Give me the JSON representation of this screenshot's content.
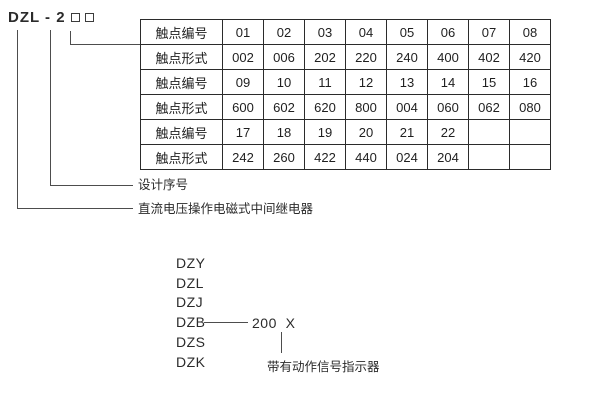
{
  "model": {
    "prefix": "DZL - 2",
    "placeholder_boxes": 2
  },
  "table": {
    "rows": [
      {
        "label": "触点编号",
        "cells": [
          "01",
          "02",
          "03",
          "04",
          "05",
          "06",
          "07",
          "08"
        ]
      },
      {
        "label": "触点形式",
        "cells": [
          "002",
          "006",
          "202",
          "220",
          "240",
          "400",
          "402",
          "420"
        ]
      },
      {
        "label": "触点编号",
        "cells": [
          "09",
          "10",
          "11",
          "12",
          "13",
          "14",
          "15",
          "16"
        ]
      },
      {
        "label": "触点形式",
        "cells": [
          "600",
          "602",
          "620",
          "800",
          "004",
          "060",
          "062",
          "080"
        ]
      },
      {
        "label": "触点编号",
        "cells": [
          "17",
          "18",
          "19",
          "20",
          "21",
          "22",
          "",
          ""
        ]
      },
      {
        "label": "触点形式",
        "cells": [
          "242",
          "260",
          "422",
          "440",
          "024",
          "204",
          "",
          ""
        ]
      }
    ]
  },
  "callouts": {
    "design_serial": "设计序号",
    "relay_description": "直流电压操作电磁式中间继电器"
  },
  "type_list": {
    "items": [
      "DZY",
      "DZL",
      "DZJ",
      "DZB",
      "DZS",
      "DZK"
    ],
    "model_suffix": "200  X",
    "indicator_note": "带有动作信号指示器"
  },
  "colors": {
    "background": "#ffffff",
    "text": "#2b2b2b",
    "line": "#4d4d4d",
    "table_border": "#2b2b2b"
  }
}
